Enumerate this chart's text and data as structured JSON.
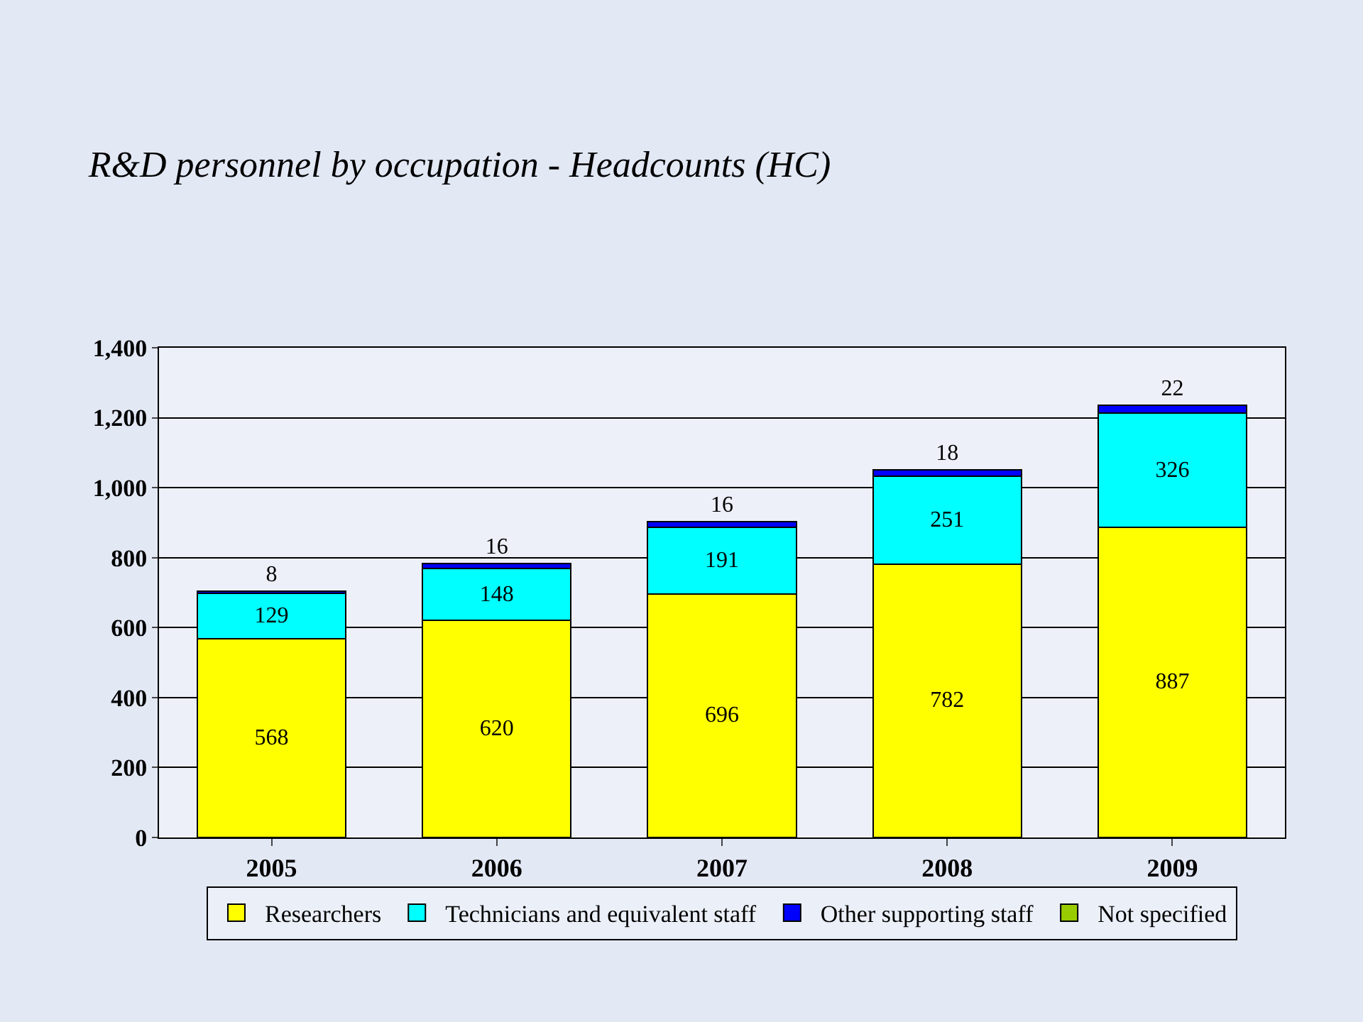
{
  "chart_data": {
    "type": "bar",
    "title": "R&D personnel by occupation - Headcounts (HC)",
    "stacked": true,
    "categories": [
      "2005",
      "2006",
      "2007",
      "2008",
      "2009"
    ],
    "series": [
      {
        "name": "Researchers",
        "color": "#ffff00",
        "values": [
          568,
          620,
          696,
          782,
          887
        ],
        "value_labels": [
          "568",
          "620",
          "696",
          "782",
          "887"
        ]
      },
      {
        "name": "Technicians and equivalent staff",
        "color": "#00ffff",
        "values": [
          129,
          148,
          191,
          251,
          326
        ],
        "value_labels": [
          "129",
          "148",
          "191",
          "251",
          "326"
        ]
      },
      {
        "name": "Other supporting staff",
        "color": "#0000ff",
        "values": [
          8,
          16,
          16,
          18,
          22
        ],
        "value_labels": [
          "8",
          "16",
          "16",
          "18",
          "22"
        ]
      },
      {
        "name": "Not specified",
        "color": "#99cc00",
        "values": [
          null,
          null,
          null,
          null,
          null
        ],
        "value_labels": [
          null,
          null,
          null,
          null,
          null
        ]
      }
    ],
    "ylim": [
      0,
      1400
    ],
    "yticks": [
      0,
      {
        "value": 200,
        "label": "200"
      },
      {
        "value": 400,
        "label": "400"
      },
      {
        "value": 600,
        "label": "600"
      },
      {
        "value": 800,
        "label": "800"
      },
      {
        "value": 1000,
        "label": "1,000"
      },
      {
        "value": 1200,
        "label": "1,200"
      },
      {
        "value": 1400,
        "label": "1,400"
      }
    ],
    "grid": "y",
    "legend": "bottom"
  }
}
